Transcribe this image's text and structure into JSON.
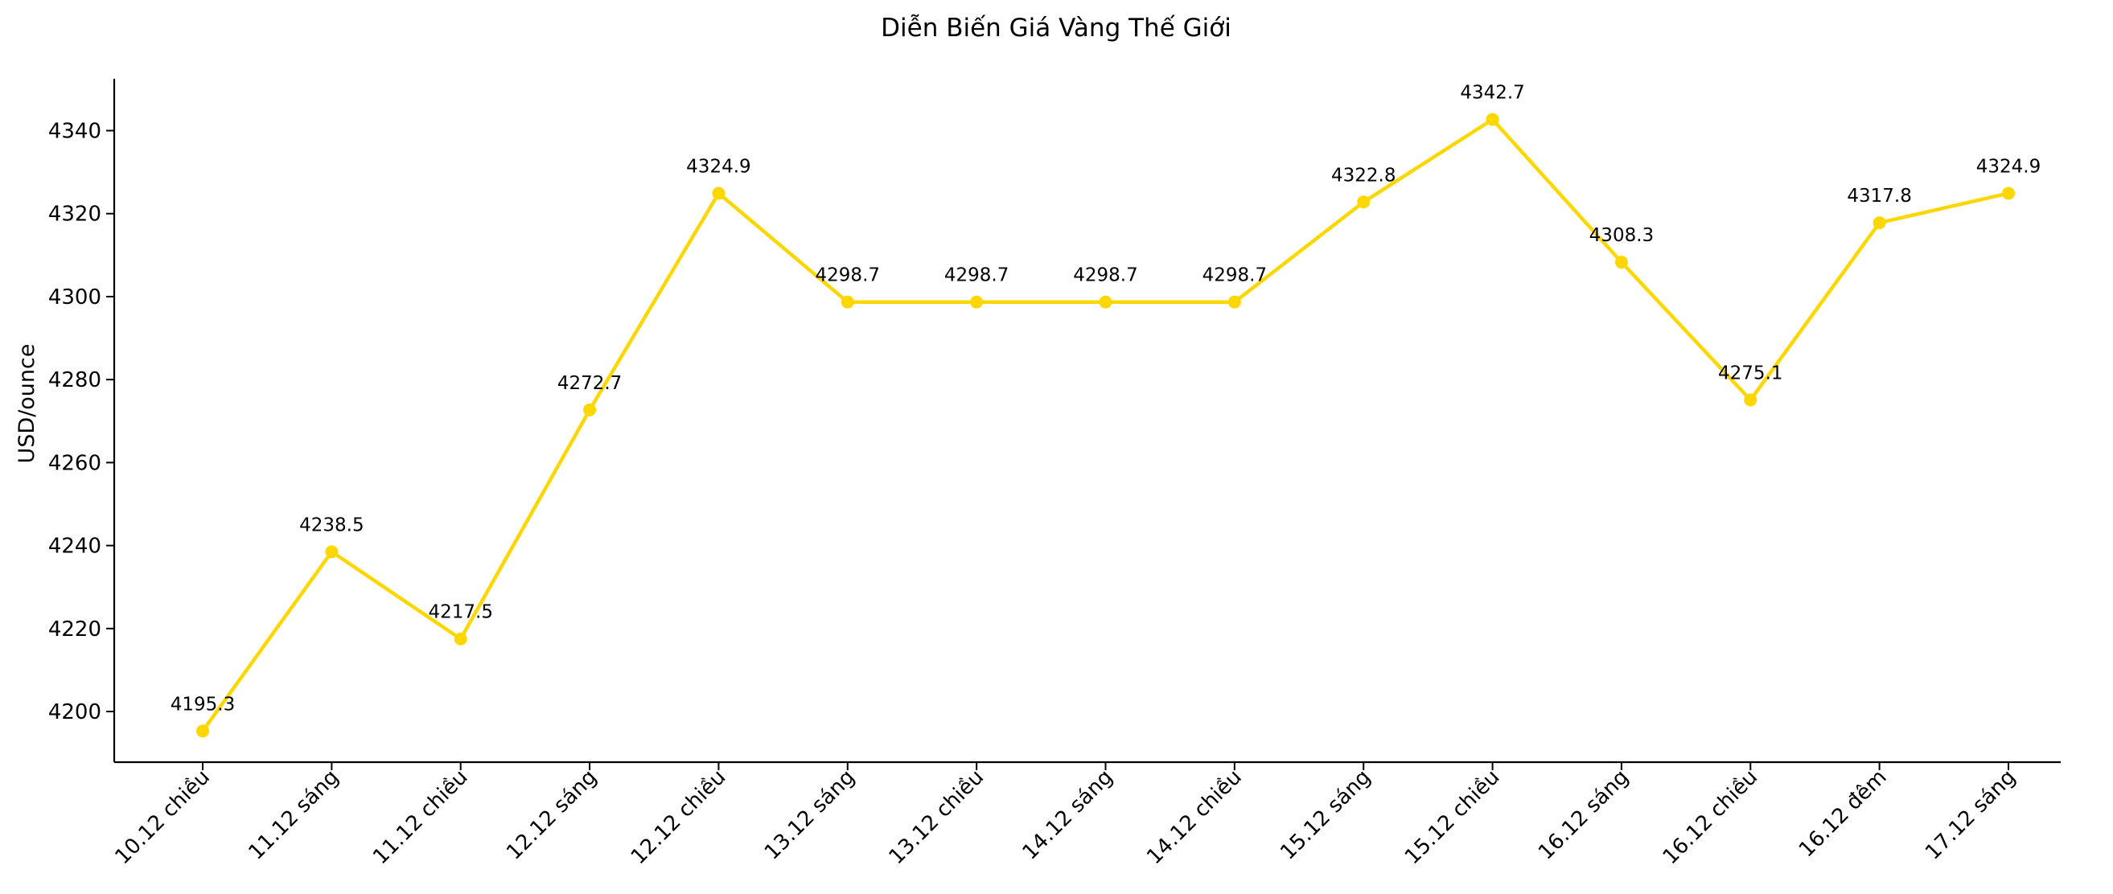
{
  "chart_data": {
    "type": "line",
    "title": "Diễn Biến Giá Vàng Thế Giới",
    "xlabel": "",
    "ylabel": "USD/ounce",
    "categories": [
      "10.12 chiều",
      "11.12 sáng",
      "11.12 chiều",
      "12.12 sáng",
      "12.12 chiều",
      "13.12 sáng",
      "13.12 chiều",
      "14.12 sáng",
      "14.12 chiều",
      "15.12 sáng",
      "15.12 chiều",
      "16.12 sáng",
      "16.12 chiều",
      "16.12 đêm",
      "17.12 sáng"
    ],
    "values": [
      4195.3,
      4238.5,
      4217.5,
      4272.7,
      4324.9,
      4298.7,
      4298.7,
      4298.7,
      4298.7,
      4322.8,
      4342.7,
      4308.3,
      4275.1,
      4317.8,
      4324.9
    ],
    "data_labels": [
      "4195.3",
      "4238.5",
      "4217.5",
      "4272.7",
      "4324.9",
      "4298.7",
      "4298.7",
      "4298.7",
      "4298.7",
      "4322.8",
      "4342.7",
      "4308.3",
      "4275.1",
      "4317.8",
      "4324.9"
    ],
    "yticks": [
      4200,
      4220,
      4240,
      4260,
      4280,
      4300,
      4320,
      4340
    ],
    "ylim": [
      4187.8,
      4352.5
    ],
    "color": "#FFD700",
    "grid": false,
    "legend": "none"
  }
}
